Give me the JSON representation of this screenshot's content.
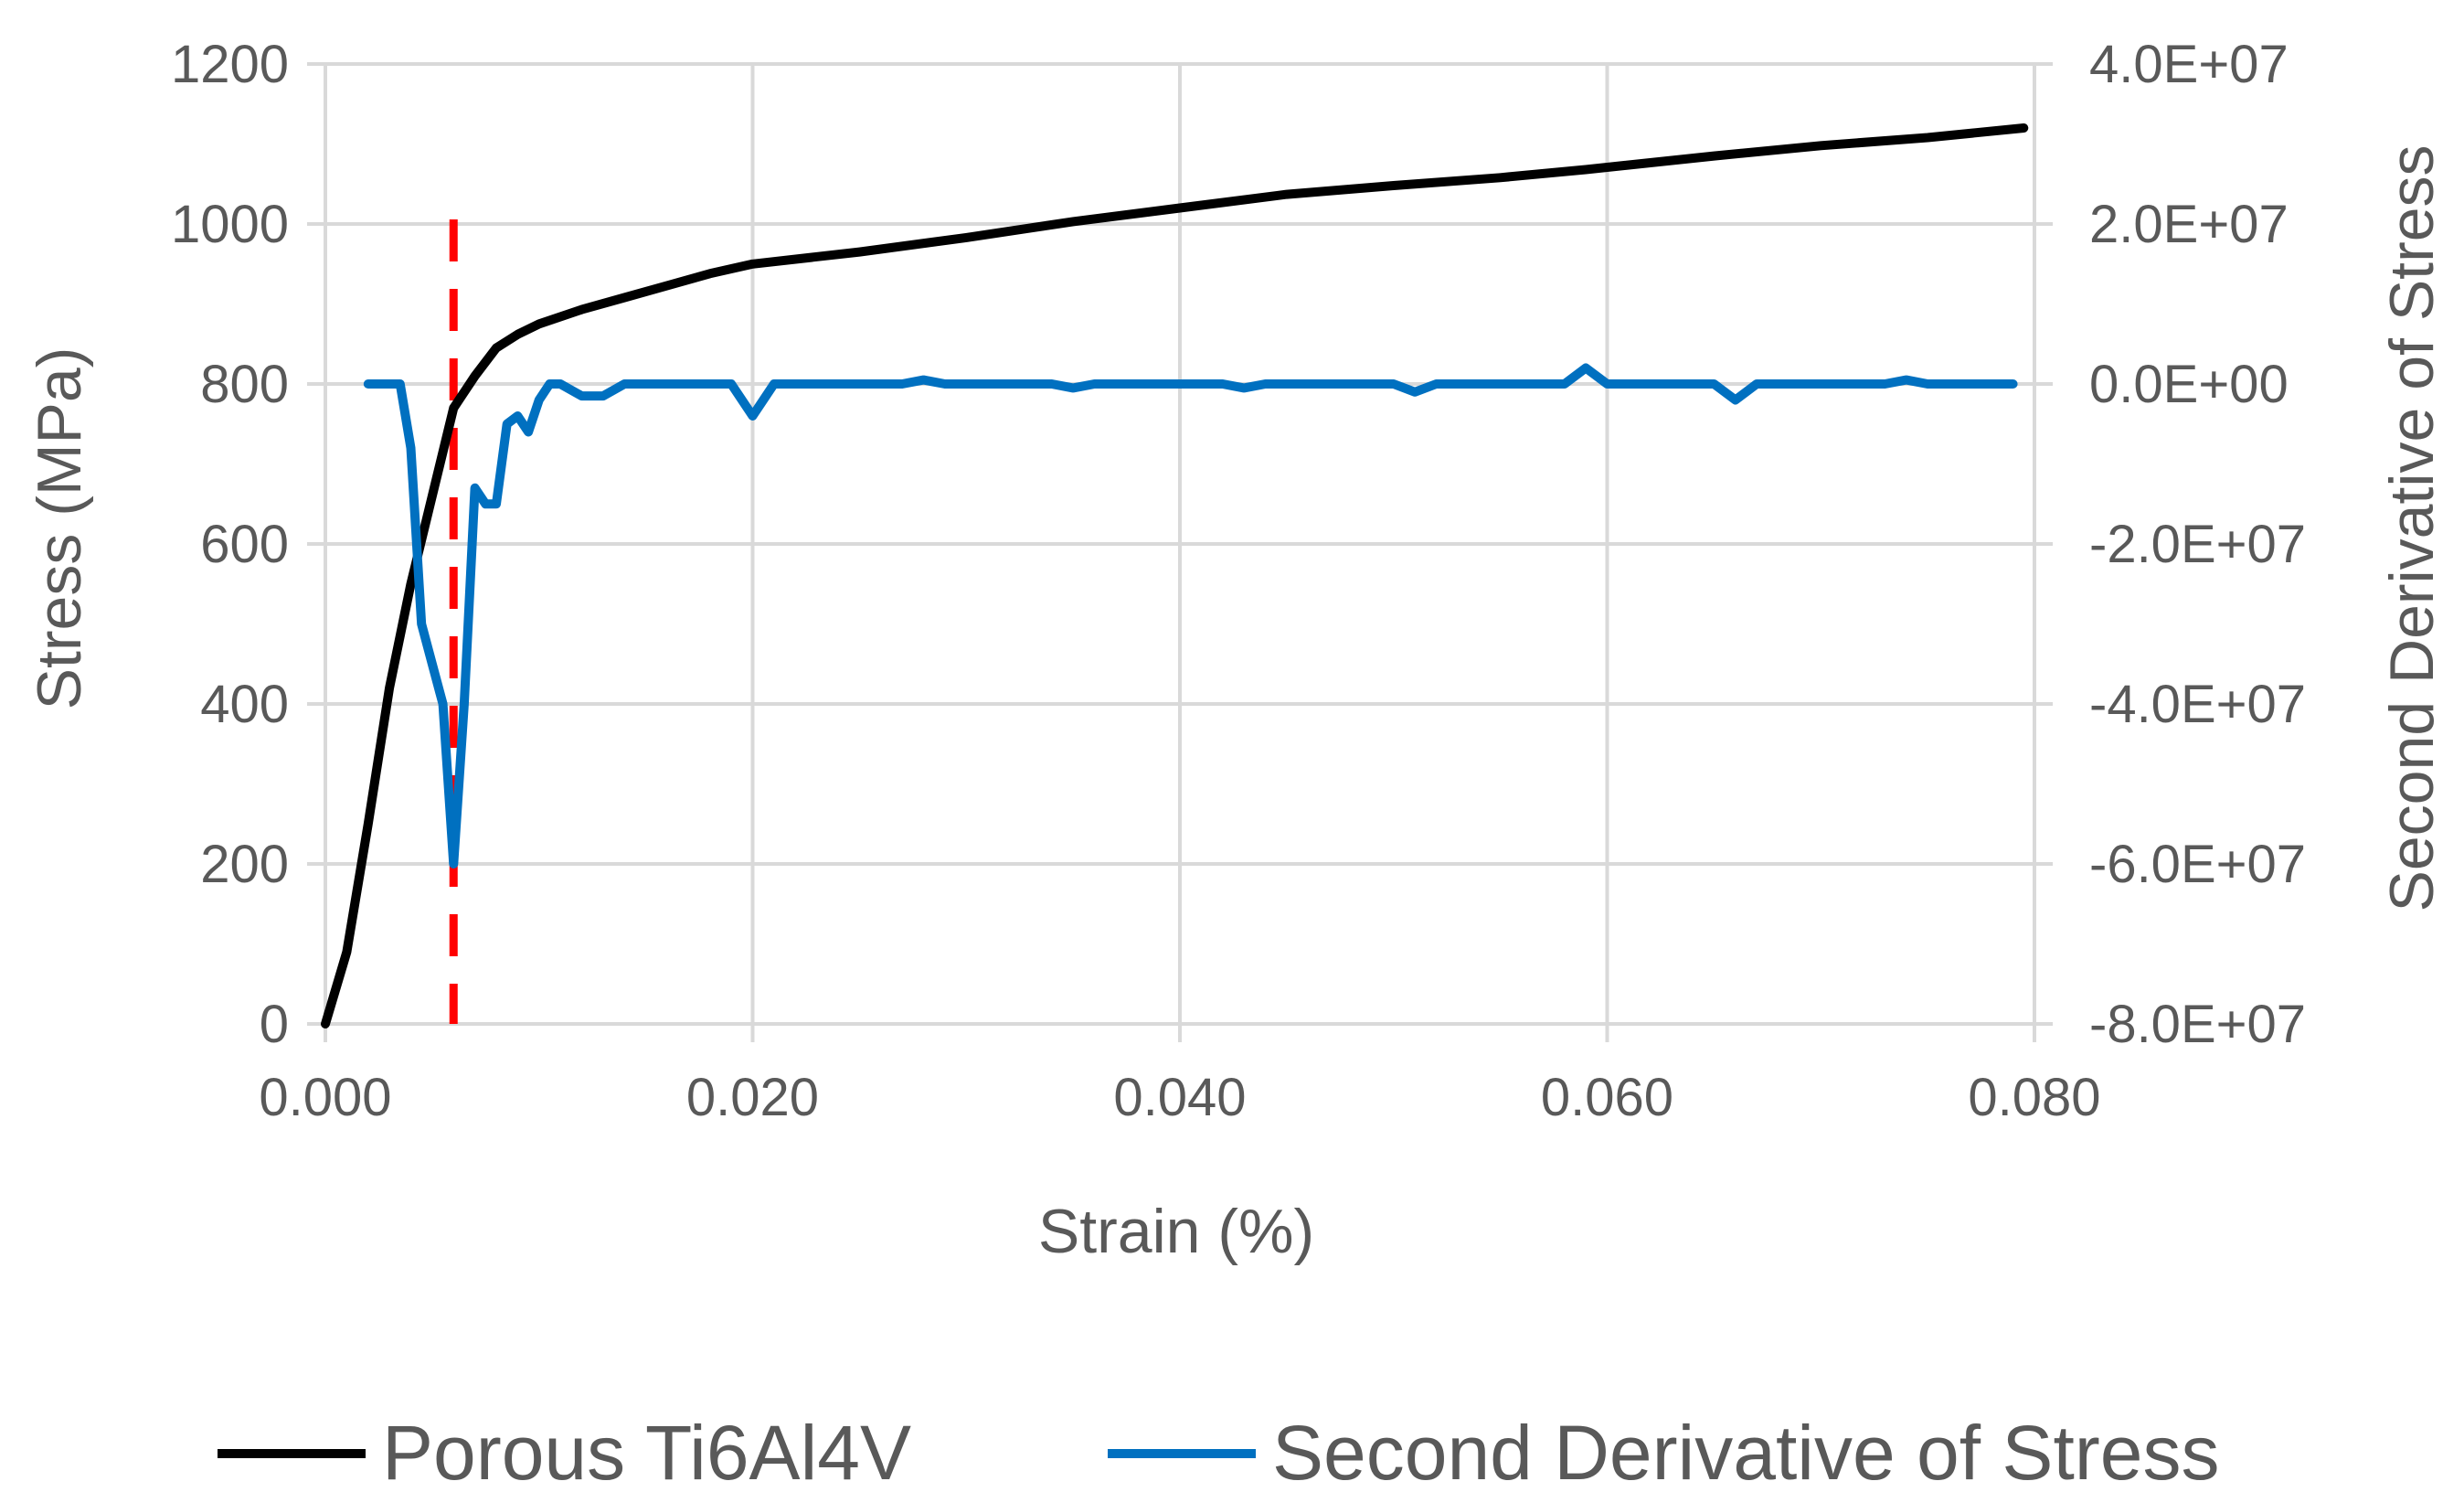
{
  "chart_data": {
    "type": "line",
    "xlabel": "Strain (%)",
    "ylabel": "Stress (MPa)",
    "y2label": "Second Derivative of Stress",
    "xlim": [
      0,
      0.08
    ],
    "ylim": [
      0,
      1200
    ],
    "y2lim": [
      -80000000,
      40000000
    ],
    "x_ticks": [
      "0.000",
      "0.020",
      "0.040",
      "0.060",
      "0.080"
    ],
    "y_ticks": [
      "0",
      "200",
      "400",
      "600",
      "800",
      "1000",
      "1200"
    ],
    "y2_ticks": [
      "-8.0E+07",
      "-6.0E+07",
      "-4.0E+07",
      "-2.0E+07",
      "0.0E+00",
      "2.0E+07",
      "4.0E+07"
    ],
    "grid": true,
    "legend_position": "bottom",
    "marker_line": {
      "x": 0.006,
      "color": "#ff0000",
      "style": "dashed"
    },
    "series": [
      {
        "name": "Porous Ti6Al4V",
        "axis": "left",
        "color": "#000000",
        "points": [
          [
            0.0,
            0
          ],
          [
            0.001,
            90
          ],
          [
            0.002,
            250
          ],
          [
            0.003,
            420
          ],
          [
            0.004,
            550
          ],
          [
            0.005,
            660
          ],
          [
            0.006,
            770
          ],
          [
            0.007,
            810
          ],
          [
            0.008,
            845
          ],
          [
            0.009,
            862
          ],
          [
            0.01,
            875
          ],
          [
            0.012,
            893
          ],
          [
            0.014,
            908
          ],
          [
            0.016,
            923
          ],
          [
            0.018,
            938
          ],
          [
            0.02,
            950
          ],
          [
            0.025,
            965
          ],
          [
            0.03,
            983
          ],
          [
            0.035,
            1003
          ],
          [
            0.04,
            1020
          ],
          [
            0.045,
            1037
          ],
          [
            0.05,
            1048
          ],
          [
            0.055,
            1058
          ],
          [
            0.059,
            1068
          ],
          [
            0.065,
            1085
          ],
          [
            0.07,
            1098
          ],
          [
            0.075,
            1108
          ],
          [
            0.0795,
            1120
          ]
        ]
      },
      {
        "name": "Second Derivative of Stress",
        "axis": "right",
        "color": "#0070c0",
        "points": [
          [
            0.002,
            0
          ],
          [
            0.0035,
            0
          ],
          [
            0.004,
            -8000000
          ],
          [
            0.0045,
            -30000000
          ],
          [
            0.005,
            -35000000
          ],
          [
            0.0055,
            -40000000
          ],
          [
            0.006,
            -60000000
          ],
          [
            0.0065,
            -40000000
          ],
          [
            0.007,
            -13000000
          ],
          [
            0.0075,
            -15000000
          ],
          [
            0.008,
            -15000000
          ],
          [
            0.0085,
            -5000000
          ],
          [
            0.009,
            -4000000
          ],
          [
            0.0095,
            -6000000
          ],
          [
            0.01,
            -2000000
          ],
          [
            0.0105,
            0
          ],
          [
            0.011,
            0
          ],
          [
            0.012,
            -1500000
          ],
          [
            0.013,
            -1500000
          ],
          [
            0.014,
            0
          ],
          [
            0.019,
            0
          ],
          [
            0.02,
            -4000000
          ],
          [
            0.021,
            0
          ],
          [
            0.027,
            0
          ],
          [
            0.028,
            500000
          ],
          [
            0.029,
            0
          ],
          [
            0.034,
            0
          ],
          [
            0.035,
            -500000
          ],
          [
            0.036,
            0
          ],
          [
            0.042,
            0
          ],
          [
            0.043,
            -500000
          ],
          [
            0.044,
            0
          ],
          [
            0.05,
            0
          ],
          [
            0.051,
            -1000000
          ],
          [
            0.052,
            0
          ],
          [
            0.058,
            0
          ],
          [
            0.059,
            2000000
          ],
          [
            0.06,
            0
          ],
          [
            0.065,
            0
          ],
          [
            0.066,
            -2000000
          ],
          [
            0.067,
            0
          ],
          [
            0.073,
            0
          ],
          [
            0.074,
            500000
          ],
          [
            0.075,
            0
          ],
          [
            0.079,
            0
          ]
        ]
      }
    ]
  }
}
